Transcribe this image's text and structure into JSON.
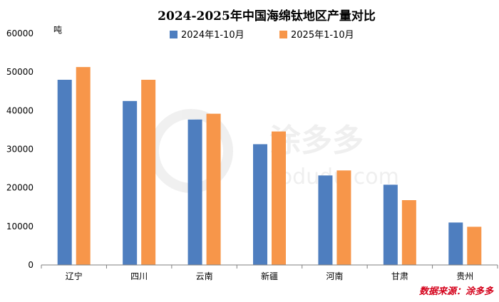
{
  "chart_data": {
    "type": "bar",
    "title": "2024-2025年中国海绵钛地区产量对比",
    "ylabel": "吨",
    "ylim": [
      0,
      60000
    ],
    "yticks": [
      0,
      10000,
      20000,
      30000,
      40000,
      50000,
      60000
    ],
    "categories": [
      "辽宁",
      "四川",
      "云南",
      "新疆",
      "河南",
      "甘肃",
      "贵州"
    ],
    "series": [
      {
        "name": "2024年1-10月",
        "color": "#4e7ebf",
        "values": [
          48000,
          42500,
          37700,
          31300,
          23200,
          20800,
          11000
        ]
      },
      {
        "name": "2025年1-10月",
        "color": "#f7964a",
        "values": [
          51300,
          48000,
          39200,
          34600,
          24500,
          16800,
          9900
        ]
      }
    ],
    "legend_position": "top",
    "grid": false
  },
  "source": "数据来源：涂多多",
  "watermark": {
    "brand_cn": "涂多多",
    "brand_en": "todudu.com"
  }
}
